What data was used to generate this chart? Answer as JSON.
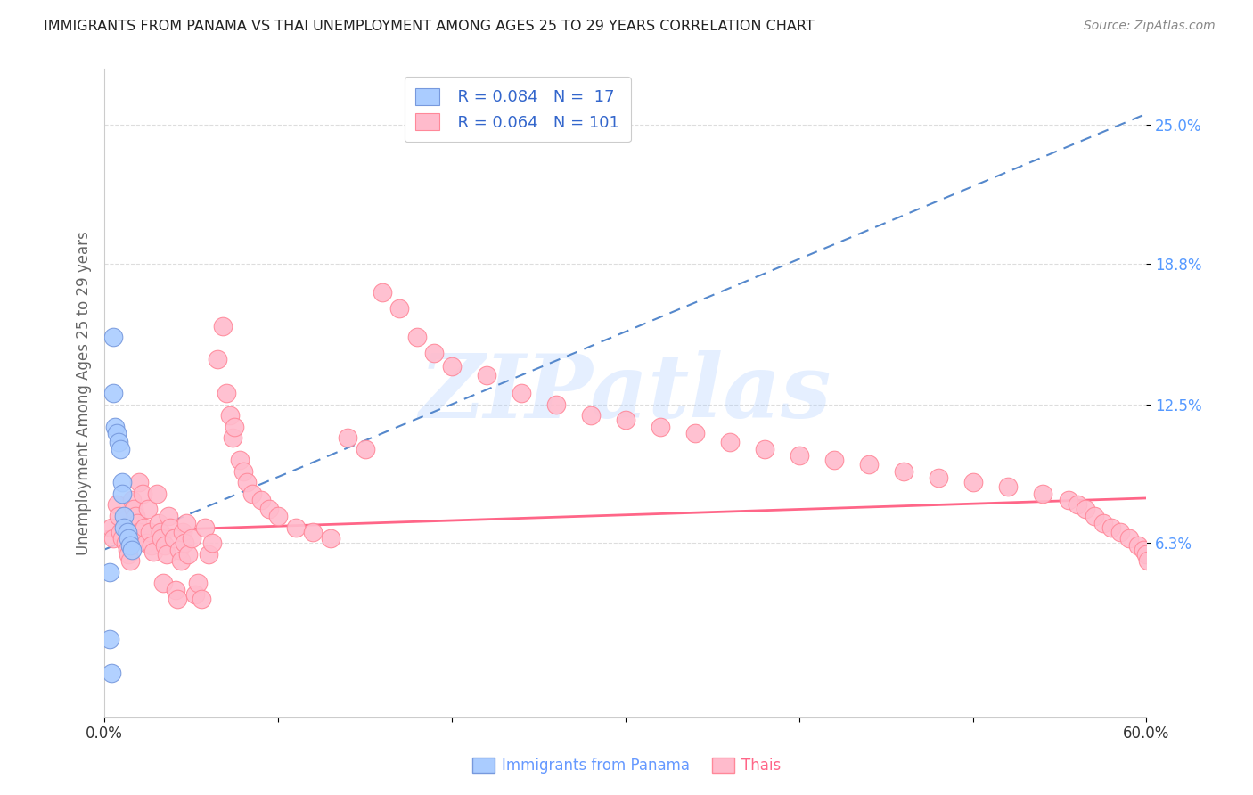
{
  "title": "IMMIGRANTS FROM PANAMA VS THAI UNEMPLOYMENT AMONG AGES 25 TO 29 YEARS CORRELATION CHART",
  "source": "Source: ZipAtlas.com",
  "ylabel": "Unemployment Among Ages 25 to 29 years",
  "xlim": [
    0.0,
    0.6
  ],
  "ylim": [
    -0.015,
    0.275
  ],
  "yticks": [
    0.063,
    0.125,
    0.188,
    0.25
  ],
  "ytick_labels": [
    "6.3%",
    "12.5%",
    "18.8%",
    "25.0%"
  ],
  "xticks": [
    0.0,
    0.1,
    0.2,
    0.3,
    0.4,
    0.5,
    0.6
  ],
  "xtick_labels": [
    "0.0%",
    "",
    "",
    "",
    "",
    "",
    "60.0%"
  ],
  "legend_blue_r": "R = 0.084",
  "legend_blue_n": "N =  17",
  "legend_pink_r": "R = 0.064",
  "legend_pink_n": "N = 101",
  "legend_blue_label": "Immigrants from Panama",
  "legend_pink_label": "Thais",
  "blue_scatter_x": [
    0.003,
    0.003,
    0.004,
    0.005,
    0.005,
    0.006,
    0.007,
    0.008,
    0.009,
    0.01,
    0.01,
    0.011,
    0.011,
    0.013,
    0.014,
    0.015,
    0.016
  ],
  "blue_scatter_y": [
    0.05,
    0.02,
    0.005,
    0.155,
    0.13,
    0.115,
    0.112,
    0.108,
    0.105,
    0.09,
    0.085,
    0.075,
    0.07,
    0.068,
    0.065,
    0.062,
    0.06
  ],
  "pink_scatter_x": [
    0.004,
    0.005,
    0.007,
    0.008,
    0.009,
    0.01,
    0.012,
    0.013,
    0.014,
    0.015,
    0.016,
    0.017,
    0.018,
    0.019,
    0.02,
    0.02,
    0.021,
    0.022,
    0.023,
    0.024,
    0.025,
    0.026,
    0.027,
    0.028,
    0.03,
    0.031,
    0.032,
    0.033,
    0.034,
    0.035,
    0.036,
    0.037,
    0.038,
    0.04,
    0.041,
    0.042,
    0.043,
    0.044,
    0.045,
    0.046,
    0.047,
    0.048,
    0.05,
    0.052,
    0.054,
    0.056,
    0.058,
    0.06,
    0.062,
    0.065,
    0.068,
    0.07,
    0.072,
    0.074,
    0.075,
    0.078,
    0.08,
    0.082,
    0.085,
    0.09,
    0.095,
    0.1,
    0.11,
    0.12,
    0.13,
    0.14,
    0.15,
    0.16,
    0.17,
    0.18,
    0.19,
    0.2,
    0.22,
    0.24,
    0.26,
    0.28,
    0.3,
    0.32,
    0.34,
    0.36,
    0.38,
    0.4,
    0.42,
    0.44,
    0.46,
    0.48,
    0.5,
    0.52,
    0.54,
    0.555,
    0.56,
    0.565,
    0.57,
    0.575,
    0.58,
    0.585,
    0.59,
    0.595,
    0.598,
    0.6,
    0.601
  ],
  "pink_scatter_y": [
    0.07,
    0.065,
    0.08,
    0.075,
    0.068,
    0.065,
    0.063,
    0.06,
    0.058,
    0.055,
    0.082,
    0.078,
    0.075,
    0.072,
    0.09,
    0.068,
    0.065,
    0.085,
    0.07,
    0.063,
    0.078,
    0.068,
    0.062,
    0.059,
    0.085,
    0.072,
    0.068,
    0.065,
    0.045,
    0.062,
    0.058,
    0.075,
    0.07,
    0.065,
    0.042,
    0.038,
    0.06,
    0.055,
    0.068,
    0.063,
    0.072,
    0.058,
    0.065,
    0.04,
    0.045,
    0.038,
    0.07,
    0.058,
    0.063,
    0.145,
    0.16,
    0.13,
    0.12,
    0.11,
    0.115,
    0.1,
    0.095,
    0.09,
    0.085,
    0.082,
    0.078,
    0.075,
    0.07,
    0.068,
    0.065,
    0.11,
    0.105,
    0.175,
    0.168,
    0.155,
    0.148,
    0.142,
    0.138,
    0.13,
    0.125,
    0.12,
    0.118,
    0.115,
    0.112,
    0.108,
    0.105,
    0.102,
    0.1,
    0.098,
    0.095,
    0.092,
    0.09,
    0.088,
    0.085,
    0.082,
    0.08,
    0.078,
    0.075,
    0.072,
    0.07,
    0.068,
    0.065,
    0.062,
    0.06,
    0.058,
    0.055
  ],
  "blue_color": "#aaccff",
  "blue_edge_color": "#7799dd",
  "pink_color": "#ffbbcc",
  "pink_edge_color": "#ff8899",
  "blue_line_color": "#5588cc",
  "pink_line_color": "#ff6688",
  "blue_trendline_x": [
    0.0,
    0.6
  ],
  "blue_trendline_y": [
    0.06,
    0.255
  ],
  "pink_trendline_x": [
    0.0,
    0.6
  ],
  "pink_trendline_y": [
    0.068,
    0.083
  ],
  "watermark_text": "ZIPatlas",
  "watermark_color": "#aaccff",
  "watermark_alpha": 0.3,
  "background_color": "#ffffff",
  "grid_color": "#dddddd",
  "title_color": "#222222",
  "source_color": "#888888",
  "ylabel_color": "#666666",
  "ytick_color": "#5599ff",
  "xtick_color": "#333333"
}
